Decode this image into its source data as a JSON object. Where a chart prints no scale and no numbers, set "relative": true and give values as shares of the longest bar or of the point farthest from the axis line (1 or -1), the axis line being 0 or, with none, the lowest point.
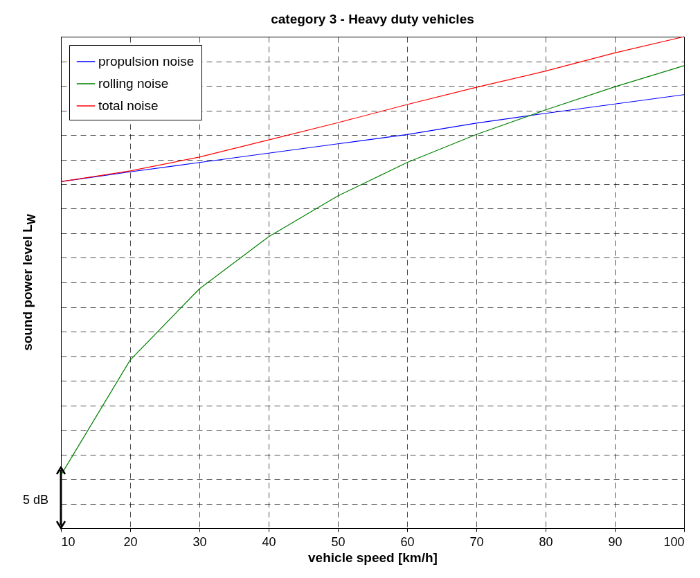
{
  "chart_data": {
    "type": "line",
    "title": "category 3 - Heavy duty vehicles",
    "xlabel": "vehicle speed [km/h]",
    "ylabel": "sound power level  L$_{W}$",
    "annotations": [
      "5 dB"
    ],
    "relative": true,
    "x": [
      10,
      20,
      30,
      40,
      50,
      60,
      70,
      80,
      90,
      100
    ],
    "xlim": [
      10,
      100
    ],
    "xticks": [
      10,
      20,
      30,
      40,
      50,
      60,
      70,
      80,
      90,
      100
    ],
    "grid": true,
    "legend": "top left",
    "line_style": "solid",
    "series": [
      {
        "name": "propulsion noise",
        "color": "#0000ff",
        "values": [
          0.705,
          0.725,
          0.744,
          0.763,
          0.782,
          0.801,
          0.824,
          0.844,
          0.863,
          0.882
        ]
      },
      {
        "name": "rolling noise",
        "color": "#008000",
        "values": [
          0.108,
          0.342,
          0.487,
          0.593,
          0.676,
          0.744,
          0.801,
          0.851,
          0.898,
          0.941
        ]
      },
      {
        "name": "total noise",
        "color": "#ff0000",
        "values": [
          0.705,
          0.727,
          0.755,
          0.79,
          0.825,
          0.862,
          0.897,
          0.93,
          0.967,
          1
        ]
      }
    ]
  }
}
